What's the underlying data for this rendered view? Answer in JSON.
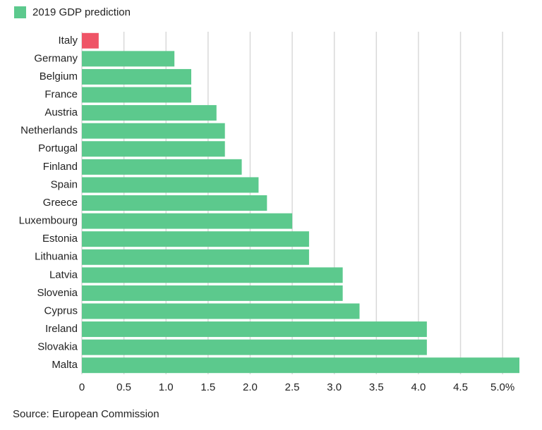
{
  "chart_data": {
    "type": "bar",
    "categories": [
      "Italy",
      "Germany",
      "Belgium",
      "France",
      "Austria",
      "Netherlands",
      "Portugal",
      "Finland",
      "Spain",
      "Greece",
      "Luxembourg",
      "Estonia",
      "Lithuania",
      "Latvia",
      "Slovenia",
      "Cyprus",
      "Ireland",
      "Slovakia",
      "Malta"
    ],
    "series": [
      {
        "name": "2019 GDP prediction",
        "color": "#5cc98d",
        "values": [
          0.2,
          1.1,
          1.3,
          1.3,
          1.6,
          1.7,
          1.7,
          1.9,
          2.1,
          2.2,
          2.5,
          2.7,
          2.7,
          3.1,
          3.1,
          3.3,
          4.1,
          4.1,
          5.2
        ],
        "colors": [
          "#ef5466",
          "#5cc98d",
          "#5cc98d",
          "#5cc98d",
          "#5cc98d",
          "#5cc98d",
          "#5cc98d",
          "#5cc98d",
          "#5cc98d",
          "#5cc98d",
          "#5cc98d",
          "#5cc98d",
          "#5cc98d",
          "#5cc98d",
          "#5cc98d",
          "#5cc98d",
          "#5cc98d",
          "#5cc98d",
          "#5cc98d"
        ]
      }
    ],
    "xlim": [
      0,
      5.2
    ],
    "xticks": [
      0,
      0.5,
      {
        "value": 1,
        "label": "1.0"
      },
      1.5,
      {
        "value": 2,
        "label": "2.0"
      },
      2.5,
      {
        "value": 3,
        "label": "3.0"
      },
      3.5,
      {
        "value": 4,
        "label": "4.0"
      },
      4.5,
      {
        "value": 5,
        "label": "5.0%"
      }
    ],
    "grid": true,
    "source": "Source: European Commission"
  }
}
